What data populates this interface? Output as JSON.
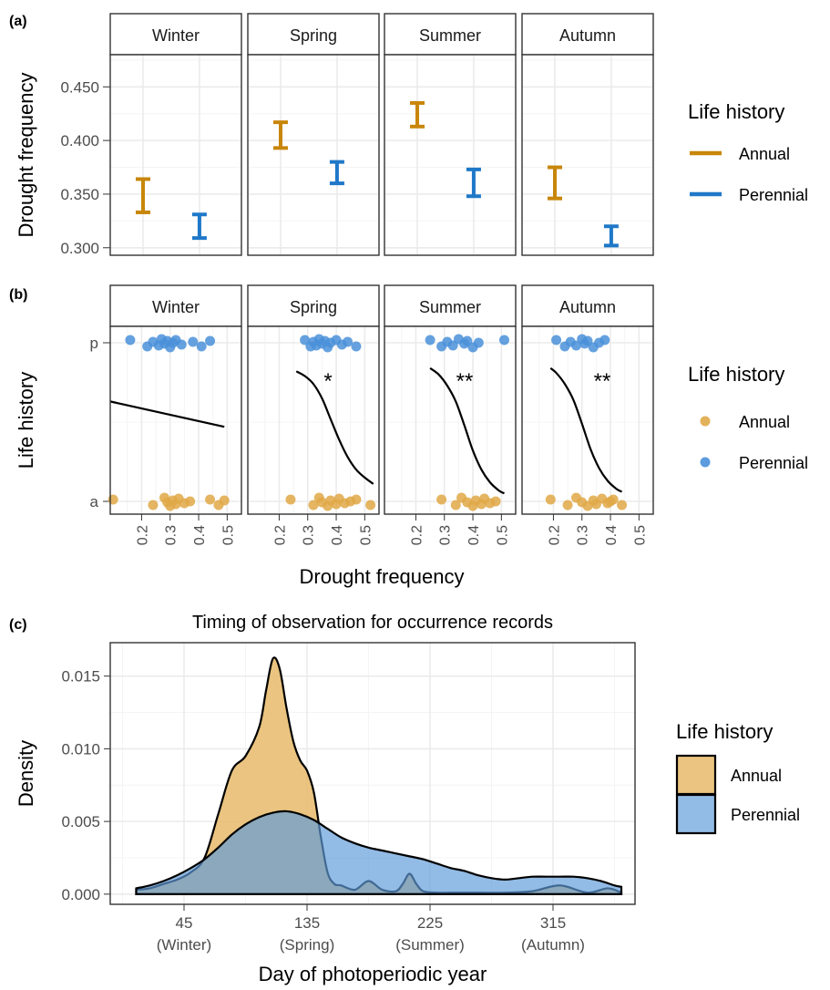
{
  "chart_data": [
    {
      "panel_label": "(a)",
      "type": "errorbar",
      "ylabel": "Drought frequency",
      "ylim": [
        0.293,
        0.48
      ],
      "y_ticks": [
        0.3,
        0.35,
        0.4,
        0.45
      ],
      "y_tick_labels": [
        "0.300",
        "0.350",
        "0.400",
        "0.450"
      ],
      "grid": true,
      "facets": [
        "Winter",
        "Spring",
        "Summer",
        "Autumn"
      ],
      "series": [
        {
          "name": "Annual",
          "color": "#C8860A",
          "x_position": 1,
          "lower": [
            0.333,
            0.393,
            0.413,
            0.346
          ],
          "upper": [
            0.364,
            0.417,
            0.435,
            0.375
          ]
        },
        {
          "name": "Perennial",
          "color": "#1F78C8",
          "x_position": 2,
          "lower": [
            0.309,
            0.36,
            0.348,
            0.302
          ],
          "upper": [
            0.331,
            0.38,
            0.373,
            0.32
          ]
        }
      ],
      "legend": {
        "title": "Life history",
        "position": "right",
        "labels": [
          "Annual",
          "Perennial"
        ]
      }
    },
    {
      "panel_label": "(b)",
      "type": "scatter",
      "xlabel": "Drought frequency",
      "ylabel": "Life history",
      "xlim": [
        0.09,
        0.55
      ],
      "x_ticks": [
        0.2,
        0.3,
        0.4,
        0.5
      ],
      "x_tick_labels": [
        "0.2",
        "0.3",
        "0.4",
        "0.5"
      ],
      "y_categories": [
        "a",
        "p"
      ],
      "grid": true,
      "facets": [
        {
          "name": "Winter",
          "significance": "",
          "fit_line": [
            [
              0.09,
              0.63
            ],
            [
              0.49,
              0.47
            ]
          ],
          "perennial_x": [
            0.16,
            0.22,
            0.24,
            0.26,
            0.27,
            0.28,
            0.29,
            0.3,
            0.31,
            0.32,
            0.34,
            0.38,
            0.41,
            0.44
          ],
          "annual_x": [
            0.1,
            0.24,
            0.28,
            0.29,
            0.3,
            0.31,
            0.32,
            0.33,
            0.35,
            0.37,
            0.44,
            0.47,
            0.49
          ]
        },
        {
          "name": "Spring",
          "significance": "*",
          "fit_line": [
            [
              0.26,
              0.82
            ],
            [
              0.29,
              0.79
            ],
            [
              0.32,
              0.74
            ],
            [
              0.35,
              0.65
            ],
            [
              0.38,
              0.52
            ],
            [
              0.41,
              0.39
            ],
            [
              0.44,
              0.28
            ],
            [
              0.47,
              0.2
            ],
            [
              0.5,
              0.15
            ],
            [
              0.53,
              0.11
            ]
          ],
          "perennial_x": [
            0.29,
            0.31,
            0.32,
            0.33,
            0.34,
            0.35,
            0.36,
            0.37,
            0.38,
            0.4,
            0.42,
            0.44,
            0.47
          ],
          "annual_x": [
            0.24,
            0.32,
            0.34,
            0.35,
            0.37,
            0.38,
            0.4,
            0.41,
            0.43,
            0.45,
            0.47,
            0.52
          ]
        },
        {
          "name": "Summer",
          "significance": "**",
          "fit_line": [
            [
              0.25,
              0.84
            ],
            [
              0.28,
              0.8
            ],
            [
              0.31,
              0.73
            ],
            [
              0.34,
              0.63
            ],
            [
              0.37,
              0.48
            ],
            [
              0.4,
              0.32
            ],
            [
              0.43,
              0.2
            ],
            [
              0.46,
              0.12
            ],
            [
              0.49,
              0.07
            ],
            [
              0.51,
              0.05
            ]
          ],
          "perennial_x": [
            0.25,
            0.29,
            0.31,
            0.33,
            0.35,
            0.37,
            0.38,
            0.4,
            0.42,
            0.51
          ],
          "annual_x": [
            0.29,
            0.34,
            0.36,
            0.38,
            0.4,
            0.41,
            0.43,
            0.44,
            0.46,
            0.48
          ]
        },
        {
          "name": "Autumn",
          "significance": "**",
          "fit_line": [
            [
              0.19,
              0.84
            ],
            [
              0.21,
              0.81
            ],
            [
              0.24,
              0.74
            ],
            [
              0.27,
              0.64
            ],
            [
              0.3,
              0.49
            ],
            [
              0.33,
              0.33
            ],
            [
              0.36,
              0.21
            ],
            [
              0.39,
              0.13
            ],
            [
              0.42,
              0.08
            ],
            [
              0.44,
              0.06
            ]
          ],
          "perennial_x": [
            0.21,
            0.24,
            0.26,
            0.28,
            0.3,
            0.31,
            0.32,
            0.34,
            0.36,
            0.38
          ],
          "annual_x": [
            0.19,
            0.25,
            0.28,
            0.3,
            0.32,
            0.34,
            0.35,
            0.37,
            0.39,
            0.4,
            0.41,
            0.44
          ]
        }
      ],
      "series": [
        {
          "name": "Annual",
          "color": "#E0A847"
        },
        {
          "name": "Perennial",
          "color": "#4A90D9"
        }
      ],
      "legend": {
        "title": "Life history",
        "position": "right",
        "labels": [
          "Annual",
          "Perennial"
        ]
      }
    },
    {
      "panel_label": "(c)",
      "type": "area",
      "title": "Timing of observation for occurrence records",
      "xlabel": "Day of photoperiodic year",
      "ylabel": "Density",
      "xlim": [
        -9,
        375
      ],
      "ylim": [
        -0.0007,
        0.0173
      ],
      "x_ticks": [
        45,
        135,
        225,
        315
      ],
      "x_tick_labels": [
        "45",
        "135",
        "225",
        "315"
      ],
      "x_tick_sublabels": [
        "(Winter)",
        "(Spring)",
        "(Summer)",
        "(Autumn)"
      ],
      "y_ticks": [
        0,
        0.005,
        0.01,
        0.015
      ],
      "y_tick_labels": [
        "0.000",
        "0.005",
        "0.010",
        "0.015"
      ],
      "grid": true,
      "series": [
        {
          "name": "Annual",
          "fill": "#E8BE72",
          "x": [
            10,
            20,
            30,
            40,
            50,
            60,
            70,
            80,
            90,
            100,
            105,
            110,
            115,
            120,
            125,
            130,
            135,
            140,
            145,
            150,
            155,
            160,
            170,
            180,
            190,
            200,
            205,
            210,
            215,
            220,
            230,
            240,
            260,
            280,
            300,
            320,
            340,
            355,
            365
          ],
          "values": [
            0.0003,
            0.0004,
            0.0007,
            0.001,
            0.0015,
            0.0025,
            0.0055,
            0.0085,
            0.0095,
            0.0115,
            0.014,
            0.0162,
            0.0155,
            0.0128,
            0.0105,
            0.0092,
            0.0085,
            0.007,
            0.004,
            0.0015,
            0.0007,
            0.0006,
            0.0003,
            0.0009,
            0.0003,
            0.0002,
            0.0007,
            0.0014,
            0.0007,
            0.0002,
            0.0001,
            0.0001,
            0.0001,
            0.0001,
            0.0002,
            0.0006,
            0.0001,
            0.0004,
            0.0001
          ]
        },
        {
          "name": "Perennial",
          "fill": "#5E9BD8",
          "x": [
            10,
            20,
            30,
            40,
            50,
            60,
            70,
            80,
            90,
            100,
            110,
            120,
            130,
            140,
            150,
            160,
            170,
            180,
            190,
            200,
            210,
            220,
            230,
            240,
            250,
            260,
            270,
            280,
            290,
            300,
            310,
            320,
            330,
            340,
            350,
            360,
            365
          ],
          "values": [
            0.0004,
            0.0006,
            0.0009,
            0.0013,
            0.0018,
            0.0024,
            0.0032,
            0.0041,
            0.0048,
            0.0053,
            0.0056,
            0.0057,
            0.0055,
            0.0051,
            0.0045,
            0.0039,
            0.0035,
            0.0032,
            0.003,
            0.0028,
            0.0026,
            0.0024,
            0.0021,
            0.0018,
            0.0016,
            0.0013,
            0.0011,
            0.001,
            0.0011,
            0.0012,
            0.0012,
            0.0012,
            0.0012,
            0.0011,
            0.0009,
            0.0006,
            0.0005
          ]
        }
      ],
      "legend": {
        "title": "Life history",
        "position": "right",
        "labels": [
          "Annual",
          "Perennial"
        ]
      }
    }
  ]
}
